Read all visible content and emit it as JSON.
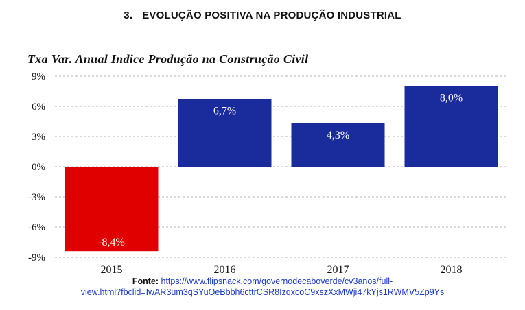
{
  "section": {
    "number": "3.",
    "title": "EVOLUÇÃO POSITIVA NA PRODUÇÃO INDUSTRIAL"
  },
  "chart_data": {
    "type": "bar",
    "title": "Txa Var. Anual Indice Produção na Construção Civil",
    "categories": [
      "2015",
      "2016",
      "2017",
      "2018"
    ],
    "values": [
      -8.4,
      6.7,
      4.3,
      8.0
    ],
    "data_labels": [
      "-8,4%",
      "6,7%",
      "4,3%",
      "8,0%"
    ],
    "colors": [
      "#e00000",
      "#1a2b9c",
      "#1a2b9c",
      "#1a2b9c"
    ],
    "ylim": [
      -9,
      9
    ],
    "yticks": [
      9,
      6,
      3,
      0,
      -3,
      -6,
      -9
    ],
    "ytick_labels": [
      "9%",
      "6%",
      "3%",
      "0%",
      "-3%",
      "-6%",
      "-9%"
    ],
    "xlabel": "",
    "ylabel": "",
    "grid": true
  },
  "source": {
    "label": "Fonte:",
    "url_line1": "https://www.flipsnack.com/governodecaboverde/cv3anos/full-",
    "url_line2": "view.html?fbclid=IwAR3um3qSYuOeBbbh6cttrCSR8IzqxcoC9xszXxMWji47kYjs1RWMV5Zp9Ys"
  }
}
